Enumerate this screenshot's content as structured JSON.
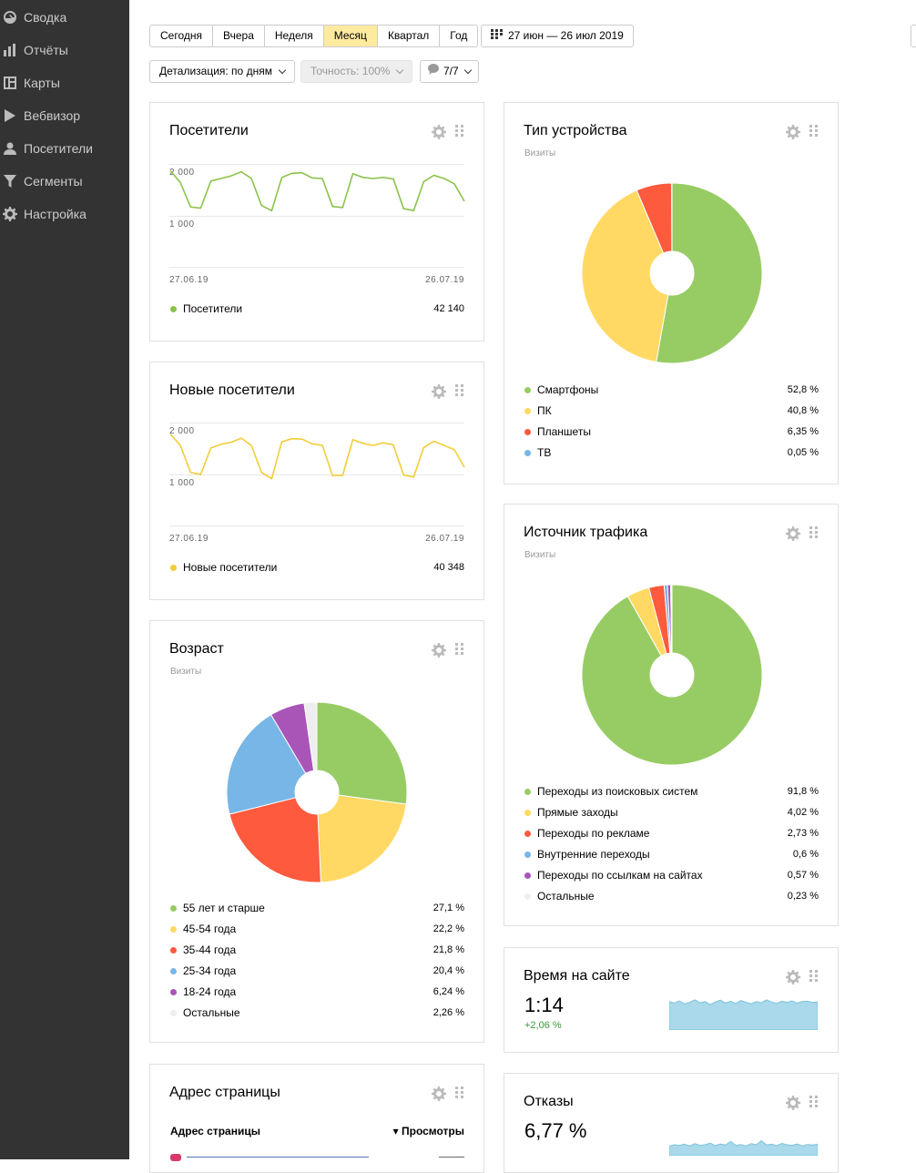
{
  "sidebar": {
    "items": [
      {
        "label": "Сводка",
        "icon": "gauge-icon"
      },
      {
        "label": "Отчёты",
        "icon": "bar-chart-icon"
      },
      {
        "label": "Карты",
        "icon": "map-layout-icon"
      },
      {
        "label": "Вебвизор",
        "icon": "play-icon"
      },
      {
        "label": "Посетители",
        "icon": "person-icon"
      },
      {
        "label": "Сегменты",
        "icon": "filter-icon"
      },
      {
        "label": "Настройка",
        "icon": "gear-icon"
      }
    ]
  },
  "toolbar": {
    "periods": [
      "Сегодня",
      "Вчера",
      "Неделя",
      "Месяц",
      "Квартал",
      "Год"
    ],
    "active_period": "Месяц",
    "date_range": "27 июн — 26 июл 2019",
    "detail": "Детализация: по дням",
    "accuracy": "Точность: 100%",
    "comments": "7/7"
  },
  "visitors_card": {
    "title": "Посетители",
    "y_top": "2 000",
    "y_mid": "1 000",
    "x_start": "27.06.19",
    "x_end": "26.07.19",
    "legend_label": "Посетители",
    "legend_value": "42 140",
    "color": "#8bc34a"
  },
  "new_visitors_card": {
    "title": "Новые посетители",
    "y_top": "2 000",
    "y_mid": "1 000",
    "x_start": "27.06.19",
    "x_end": "26.07.19",
    "legend_label": "Новые посетители",
    "legend_value": "40 348",
    "color": "#f2cd3a"
  },
  "age_card": {
    "title": "Возраст",
    "subtitle": "Визиты",
    "legend": [
      {
        "label": "55 лет и старше",
        "value": "27,1 %",
        "color": "#97cc64"
      },
      {
        "label": "45-54 года",
        "value": "22,2 %",
        "color": "#ffd963"
      },
      {
        "label": "35-44 года",
        "value": "21,8 %",
        "color": "#fd5a3e"
      },
      {
        "label": "25-34 года",
        "value": "20,4 %",
        "color": "#77b6e7"
      },
      {
        "label": "18-24 года",
        "value": "6,24 %",
        "color": "#a955b8"
      },
      {
        "label": "Остальные",
        "value": "2,26 %",
        "color": "#eeeeee"
      }
    ]
  },
  "page_address_card": {
    "title": "Адрес страницы",
    "col_address": "Адрес страницы",
    "col_views": "▾ Просмотры"
  },
  "device_card": {
    "title": "Тип устройства",
    "subtitle": "Визиты",
    "legend": [
      {
        "label": "Смартфоны",
        "value": "52,8 %",
        "color": "#97cc64"
      },
      {
        "label": "ПК",
        "value": "40,8 %",
        "color": "#ffd963"
      },
      {
        "label": "Планшеты",
        "value": "6,35 %",
        "color": "#fd5a3e"
      },
      {
        "label": "ТВ",
        "value": "0,05 %",
        "color": "#77b6e7"
      }
    ]
  },
  "traffic_card": {
    "title": "Источник трафика",
    "subtitle": "Визиты",
    "legend": [
      {
        "label": "Переходы из поисковых систем",
        "value": "91,8 %",
        "color": "#97cc64"
      },
      {
        "label": "Прямые заходы",
        "value": "4,02 %",
        "color": "#ffd963"
      },
      {
        "label": "Переходы по рекламе",
        "value": "2,73 %",
        "color": "#fd5a3e"
      },
      {
        "label": "Внутренние переходы",
        "value": "0,6 %",
        "color": "#77b6e7"
      },
      {
        "label": "Переходы по ссылкам на сайтах",
        "value": "0,57 %",
        "color": "#a955b8"
      },
      {
        "label": "Остальные",
        "value": "0,23 %",
        "color": "#eeeeee"
      }
    ]
  },
  "time_card": {
    "title": "Время на сайте",
    "value": "1:14",
    "delta": "+2,06 %"
  },
  "bounce_card": {
    "title": "Отказы",
    "value": "6,77 %"
  },
  "chart_data": [
    {
      "type": "line",
      "series": [
        {
          "name": "Посетители",
          "values": [
            1870,
            1640,
            1170,
            1150,
            1670,
            1720,
            1770,
            1850,
            1720,
            1200,
            1100,
            1740,
            1820,
            1830,
            1730,
            1720,
            1180,
            1160,
            1810,
            1740,
            1720,
            1740,
            1710,
            1140,
            1100,
            1660,
            1780,
            1720,
            1620,
            1280
          ]
        }
      ],
      "ylim": [
        0,
        2000
      ]
    },
    {
      "type": "line",
      "series": [
        {
          "name": "Новые посетители",
          "values": [
            1780,
            1560,
            1040,
            1000,
            1510,
            1580,
            1620,
            1700,
            1560,
            1040,
            920,
            1630,
            1690,
            1680,
            1590,
            1560,
            980,
            980,
            1670,
            1600,
            1560,
            1610,
            1570,
            990,
            950,
            1520,
            1640,
            1560,
            1480,
            1140
          ]
        }
      ],
      "ylim": [
        0,
        2000
      ]
    },
    {
      "type": "pie",
      "categories": [
        "55 лет и старше",
        "45-54 года",
        "35-44 года",
        "25-34 года",
        "18-24 года",
        "Остальные"
      ],
      "values": [
        27.1,
        22.2,
        21.8,
        20.4,
        6.24,
        2.26
      ]
    },
    {
      "type": "pie",
      "categories": [
        "Смартфоны",
        "ПК",
        "Планшеты",
        "ТВ"
      ],
      "values": [
        52.8,
        40.8,
        6.35,
        0.05
      ]
    },
    {
      "type": "pie",
      "categories": [
        "Переходы из поисковых систем",
        "Прямые заходы",
        "Переходы по рекламе",
        "Внутренние переходы",
        "Переходы по ссылкам на сайтах",
        "Остальные"
      ],
      "values": [
        91.8,
        4.02,
        2.73,
        0.6,
        0.57,
        0.23
      ]
    },
    {
      "type": "area",
      "values": [
        0.78,
        0.74,
        0.8,
        0.72,
        0.76,
        0.83,
        0.75,
        0.78,
        0.7,
        0.77,
        0.82,
        0.74,
        0.79,
        0.73,
        0.81,
        0.76,
        0.72,
        0.78,
        0.75,
        0.83,
        0.77,
        0.73,
        0.79,
        0.76,
        0.8,
        0.74,
        0.78,
        0.79,
        0.76,
        0.77
      ]
    },
    {
      "type": "area",
      "values": [
        0.35,
        0.4,
        0.38,
        0.42,
        0.36,
        0.44,
        0.38,
        0.4,
        0.46,
        0.37,
        0.43,
        0.39,
        0.52,
        0.38,
        0.41,
        0.36,
        0.44,
        0.4,
        0.55,
        0.39,
        0.42,
        0.37,
        0.45,
        0.4,
        0.38,
        0.43,
        0.36,
        0.41,
        0.39,
        0.42
      ]
    }
  ]
}
